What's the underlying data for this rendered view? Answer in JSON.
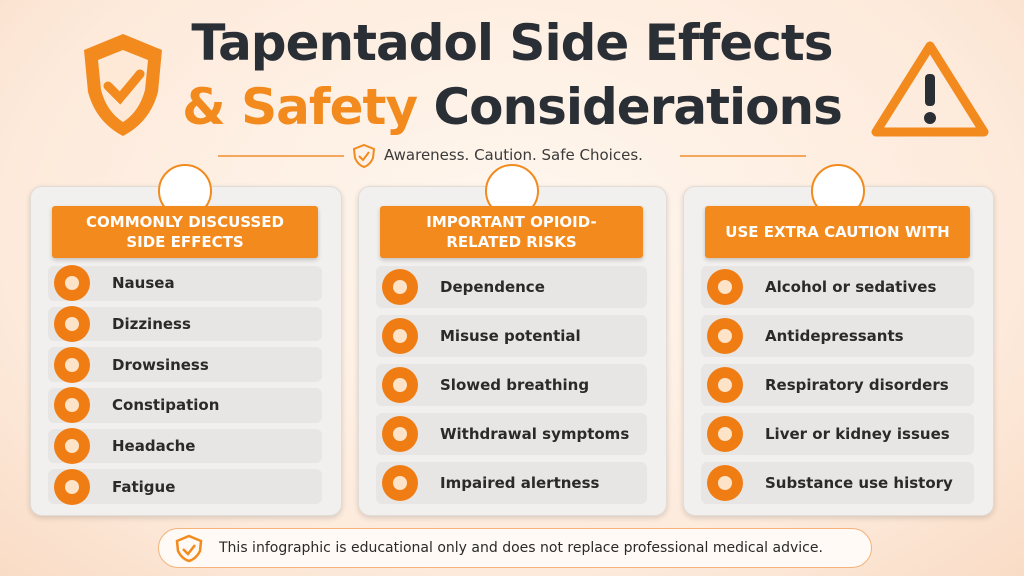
{
  "header": {
    "title_dark_1": "Tapentadol Side Effects",
    "title_orange": "& Safety",
    "title_dark_2": "Considerations",
    "tagline": "Awareness. Caution. Safe Choices."
  },
  "columns": [
    {
      "heading": "COMMONLY DISCUSSED SIDE EFFECTS",
      "items": [
        "Nausea",
        "Dizziness",
        "Drowsiness",
        "Constipation",
        "Headache",
        "Fatigue"
      ]
    },
    {
      "heading": "IMPORTANT OPIOID-RELATED RISKS",
      "items": [
        "Dependence",
        "Misuse potential",
        "Slowed breathing",
        "Withdrawal symptoms",
        "Impaired alertness"
      ]
    },
    {
      "heading": "USE EXTRA CAUTION WITH",
      "items": [
        "Alcohol or sedatives",
        "Antidepressants",
        "Respiratory disorders",
        "Liver or kidney issues",
        "Substance use history"
      ]
    }
  ],
  "footer": {
    "note": "This infographic is educational only and does not replace professional medical advice."
  }
}
